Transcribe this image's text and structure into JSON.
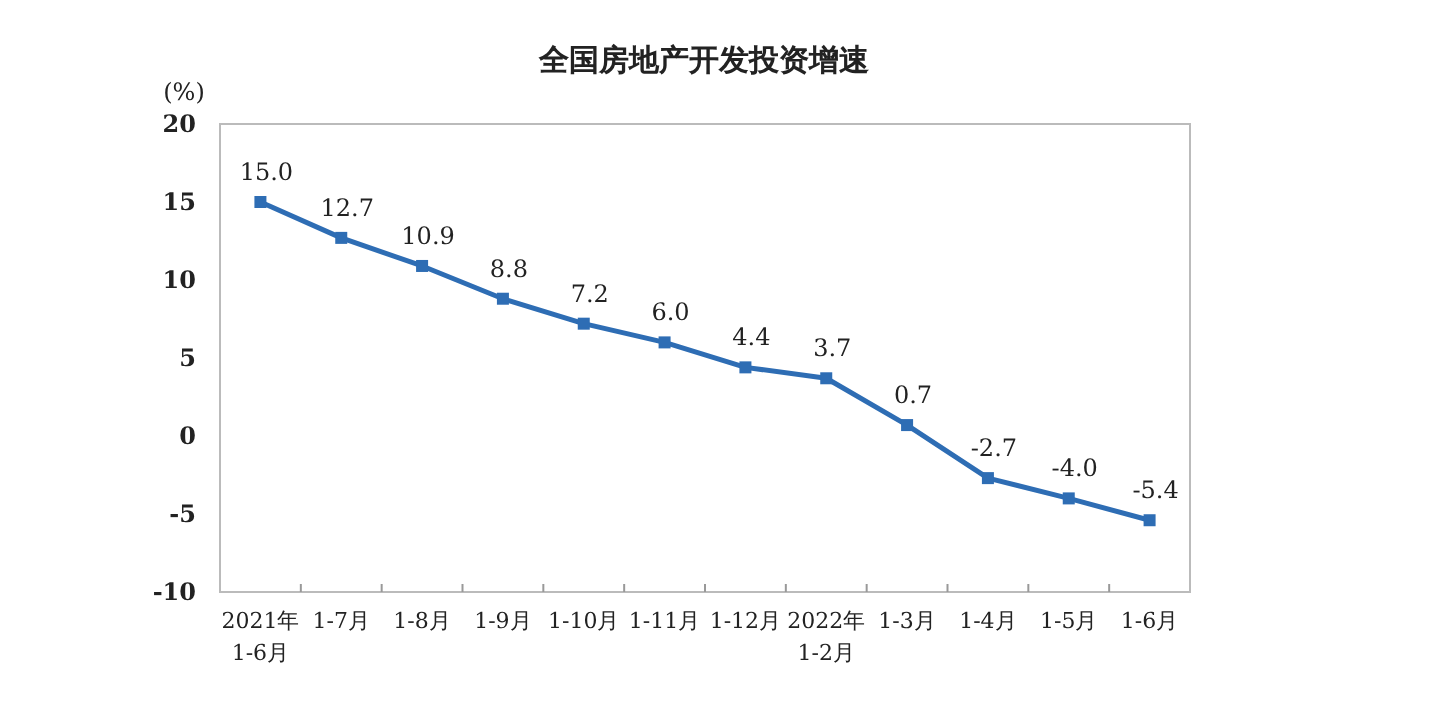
{
  "chart_data": {
    "type": "line",
    "title": "全国房地产开发投资增速",
    "ylabel": "(%)",
    "categories": [
      "2021年\n1-6月",
      "1-7月",
      "1-8月",
      "1-9月",
      "1-10月",
      "1-11月",
      "1-12月",
      "2022年\n1-2月",
      "1-3月",
      "1-4月",
      "1-5月",
      "1-6月"
    ],
    "series": [
      {
        "color": "#2e6db4",
        "values": [
          15.0,
          12.7,
          10.9,
          8.8,
          7.2,
          6.0,
          4.4,
          3.7,
          0.7,
          -2.7,
          -4.0,
          -5.4
        ]
      }
    ],
    "value_labels": [
      "15.0",
      "12.7",
      "10.9",
      "8.8",
      "7.2",
      "6.0",
      "4.4",
      "3.7",
      "0.7",
      "-2.7",
      "-4.0",
      "-5.4"
    ],
    "ylim": [
      -10,
      20
    ],
    "yticks": [
      -10,
      -5,
      0,
      5,
      10,
      15,
      20
    ],
    "marker": "square",
    "grid": false
  }
}
